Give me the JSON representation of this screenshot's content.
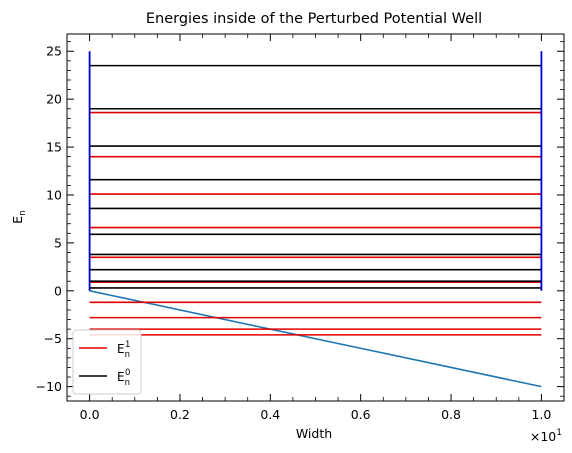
{
  "chart_data": {
    "type": "line",
    "title": "Energies inside of the Perturbed Potential Well",
    "xlabel": "Width",
    "ylabel": "E_n",
    "x_offset_label": "×10^1",
    "xlim": [
      -0.05,
      1.05
    ],
    "ylim": [
      -11.5,
      26.8
    ],
    "x_ticks": [
      0.0,
      0.2,
      0.4,
      0.6,
      0.8,
      1.0
    ],
    "x_tick_labels": [
      "0.0",
      "0.2",
      "0.4",
      "0.6",
      "0.8",
      "1.0"
    ],
    "y_ticks": [
      -10,
      -5,
      0,
      5,
      10,
      15,
      20,
      25
    ],
    "y_tick_labels": [
      "−10",
      "−5",
      "0",
      "5",
      "10",
      "15",
      "20",
      "25"
    ],
    "grid": false,
    "legend_position": "lower left",
    "colors": {
      "well": "#0000cc",
      "perturbation": "#1f77b4",
      "perturbed_levels": "#e00000",
      "unperturbed_levels": "#000000"
    },
    "well": {
      "x": [
        0.0,
        1.0
      ],
      "y_bottom": 0,
      "y_top": 25
    },
    "perturbation_line": {
      "x": [
        0.0,
        1.0
      ],
      "y": [
        0,
        -10
      ]
    },
    "series": [
      {
        "name": "E_n^1",
        "legend_main": "E",
        "legend_sub": "n",
        "legend_sup": "1",
        "x_range": [
          0.0,
          1.0
        ],
        "levels": [
          18.6,
          14.0,
          10.1,
          6.6,
          3.5,
          0.9,
          -1.2,
          -2.8,
          -4.0,
          -4.6
        ]
      },
      {
        "name": "E_n^0",
        "legend_main": "E",
        "legend_sub": "n",
        "legend_sup": "0",
        "x_range": [
          0.0,
          1.0
        ],
        "levels": [
          23.5,
          19.0,
          15.1,
          11.6,
          8.6,
          5.9,
          3.8,
          2.2,
          1.0,
          0.3
        ]
      }
    ]
  }
}
